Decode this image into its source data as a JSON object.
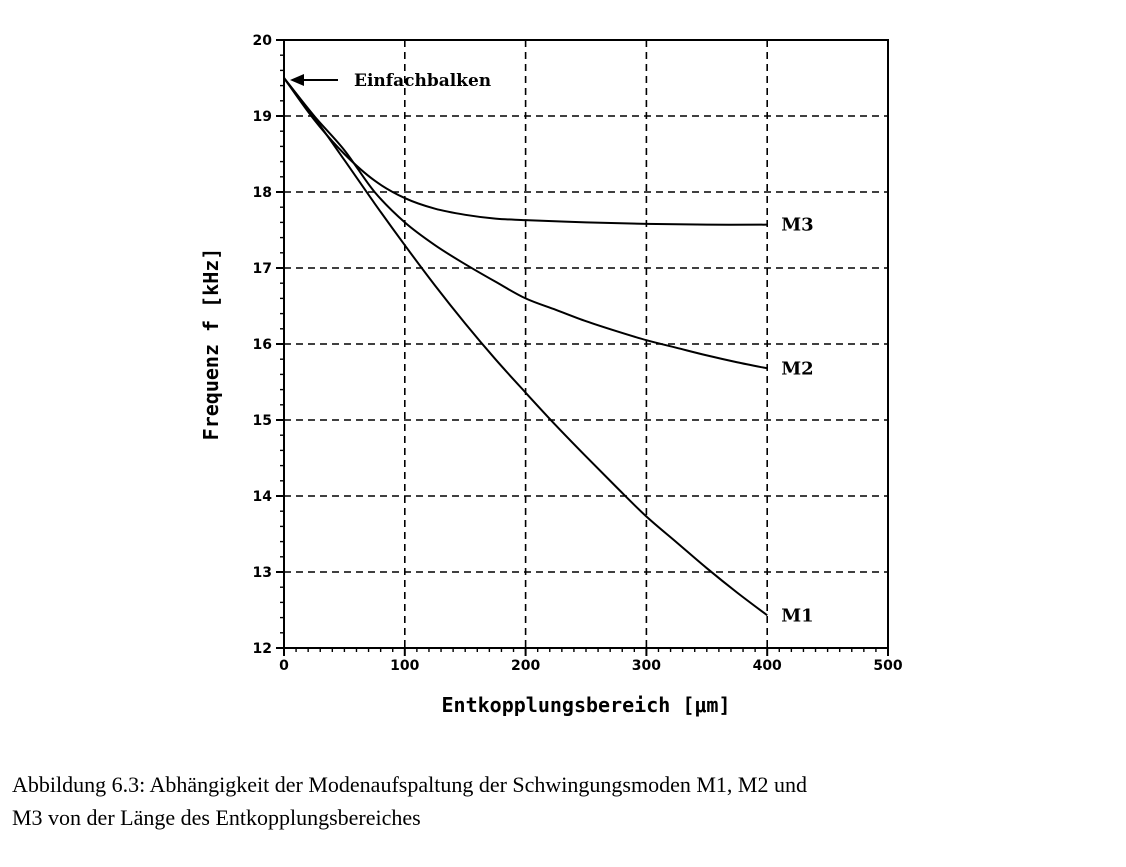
{
  "chart_data": {
    "type": "line",
    "title": "",
    "xlabel": "Entkopplungsbereich [μm]",
    "ylabel": "Frequenz f [kHz]",
    "xlim": [
      0,
      500
    ],
    "ylim": [
      12,
      20
    ],
    "xticks": [
      0,
      100,
      200,
      300,
      400,
      500
    ],
    "yticks": [
      12,
      13,
      14,
      15,
      16,
      17,
      18,
      19,
      20
    ],
    "grid": true,
    "annotation": {
      "text": "Einfachbalken",
      "x": 0,
      "y": 19.5
    },
    "series": [
      {
        "name": "M1",
        "x": [
          0,
          25,
          50,
          75,
          100,
          125,
          150,
          175,
          200,
          225,
          250,
          275,
          300,
          325,
          350,
          375,
          400
        ],
        "y": [
          19.5,
          18.98,
          18.42,
          17.85,
          17.3,
          16.77,
          16.27,
          15.8,
          15.36,
          14.93,
          14.52,
          14.12,
          13.73,
          13.39,
          13.05,
          12.73,
          12.43
        ]
      },
      {
        "name": "M2",
        "x": [
          0,
          25,
          50,
          75,
          100,
          125,
          150,
          175,
          200,
          225,
          250,
          275,
          300,
          325,
          350,
          375,
          400
        ],
        "y": [
          19.5,
          19.0,
          18.55,
          18.0,
          17.6,
          17.3,
          17.05,
          16.82,
          16.6,
          16.45,
          16.3,
          16.17,
          16.05,
          15.95,
          15.85,
          15.76,
          15.68
        ]
      },
      {
        "name": "M3",
        "x": [
          0,
          25,
          50,
          75,
          100,
          125,
          150,
          175,
          200,
          250,
          300,
          350,
          400
        ],
        "y": [
          19.5,
          18.95,
          18.5,
          18.15,
          17.92,
          17.78,
          17.7,
          17.65,
          17.63,
          17.6,
          17.58,
          17.57,
          17.57
        ]
      }
    ]
  },
  "caption": {
    "line1": "Abbildung 6.3: Abhängigkeit der Modenaufspaltung der Schwingungsmoden M1, M2 und",
    "line2": "M3 von der Länge des Entkopplungsbereiches"
  }
}
